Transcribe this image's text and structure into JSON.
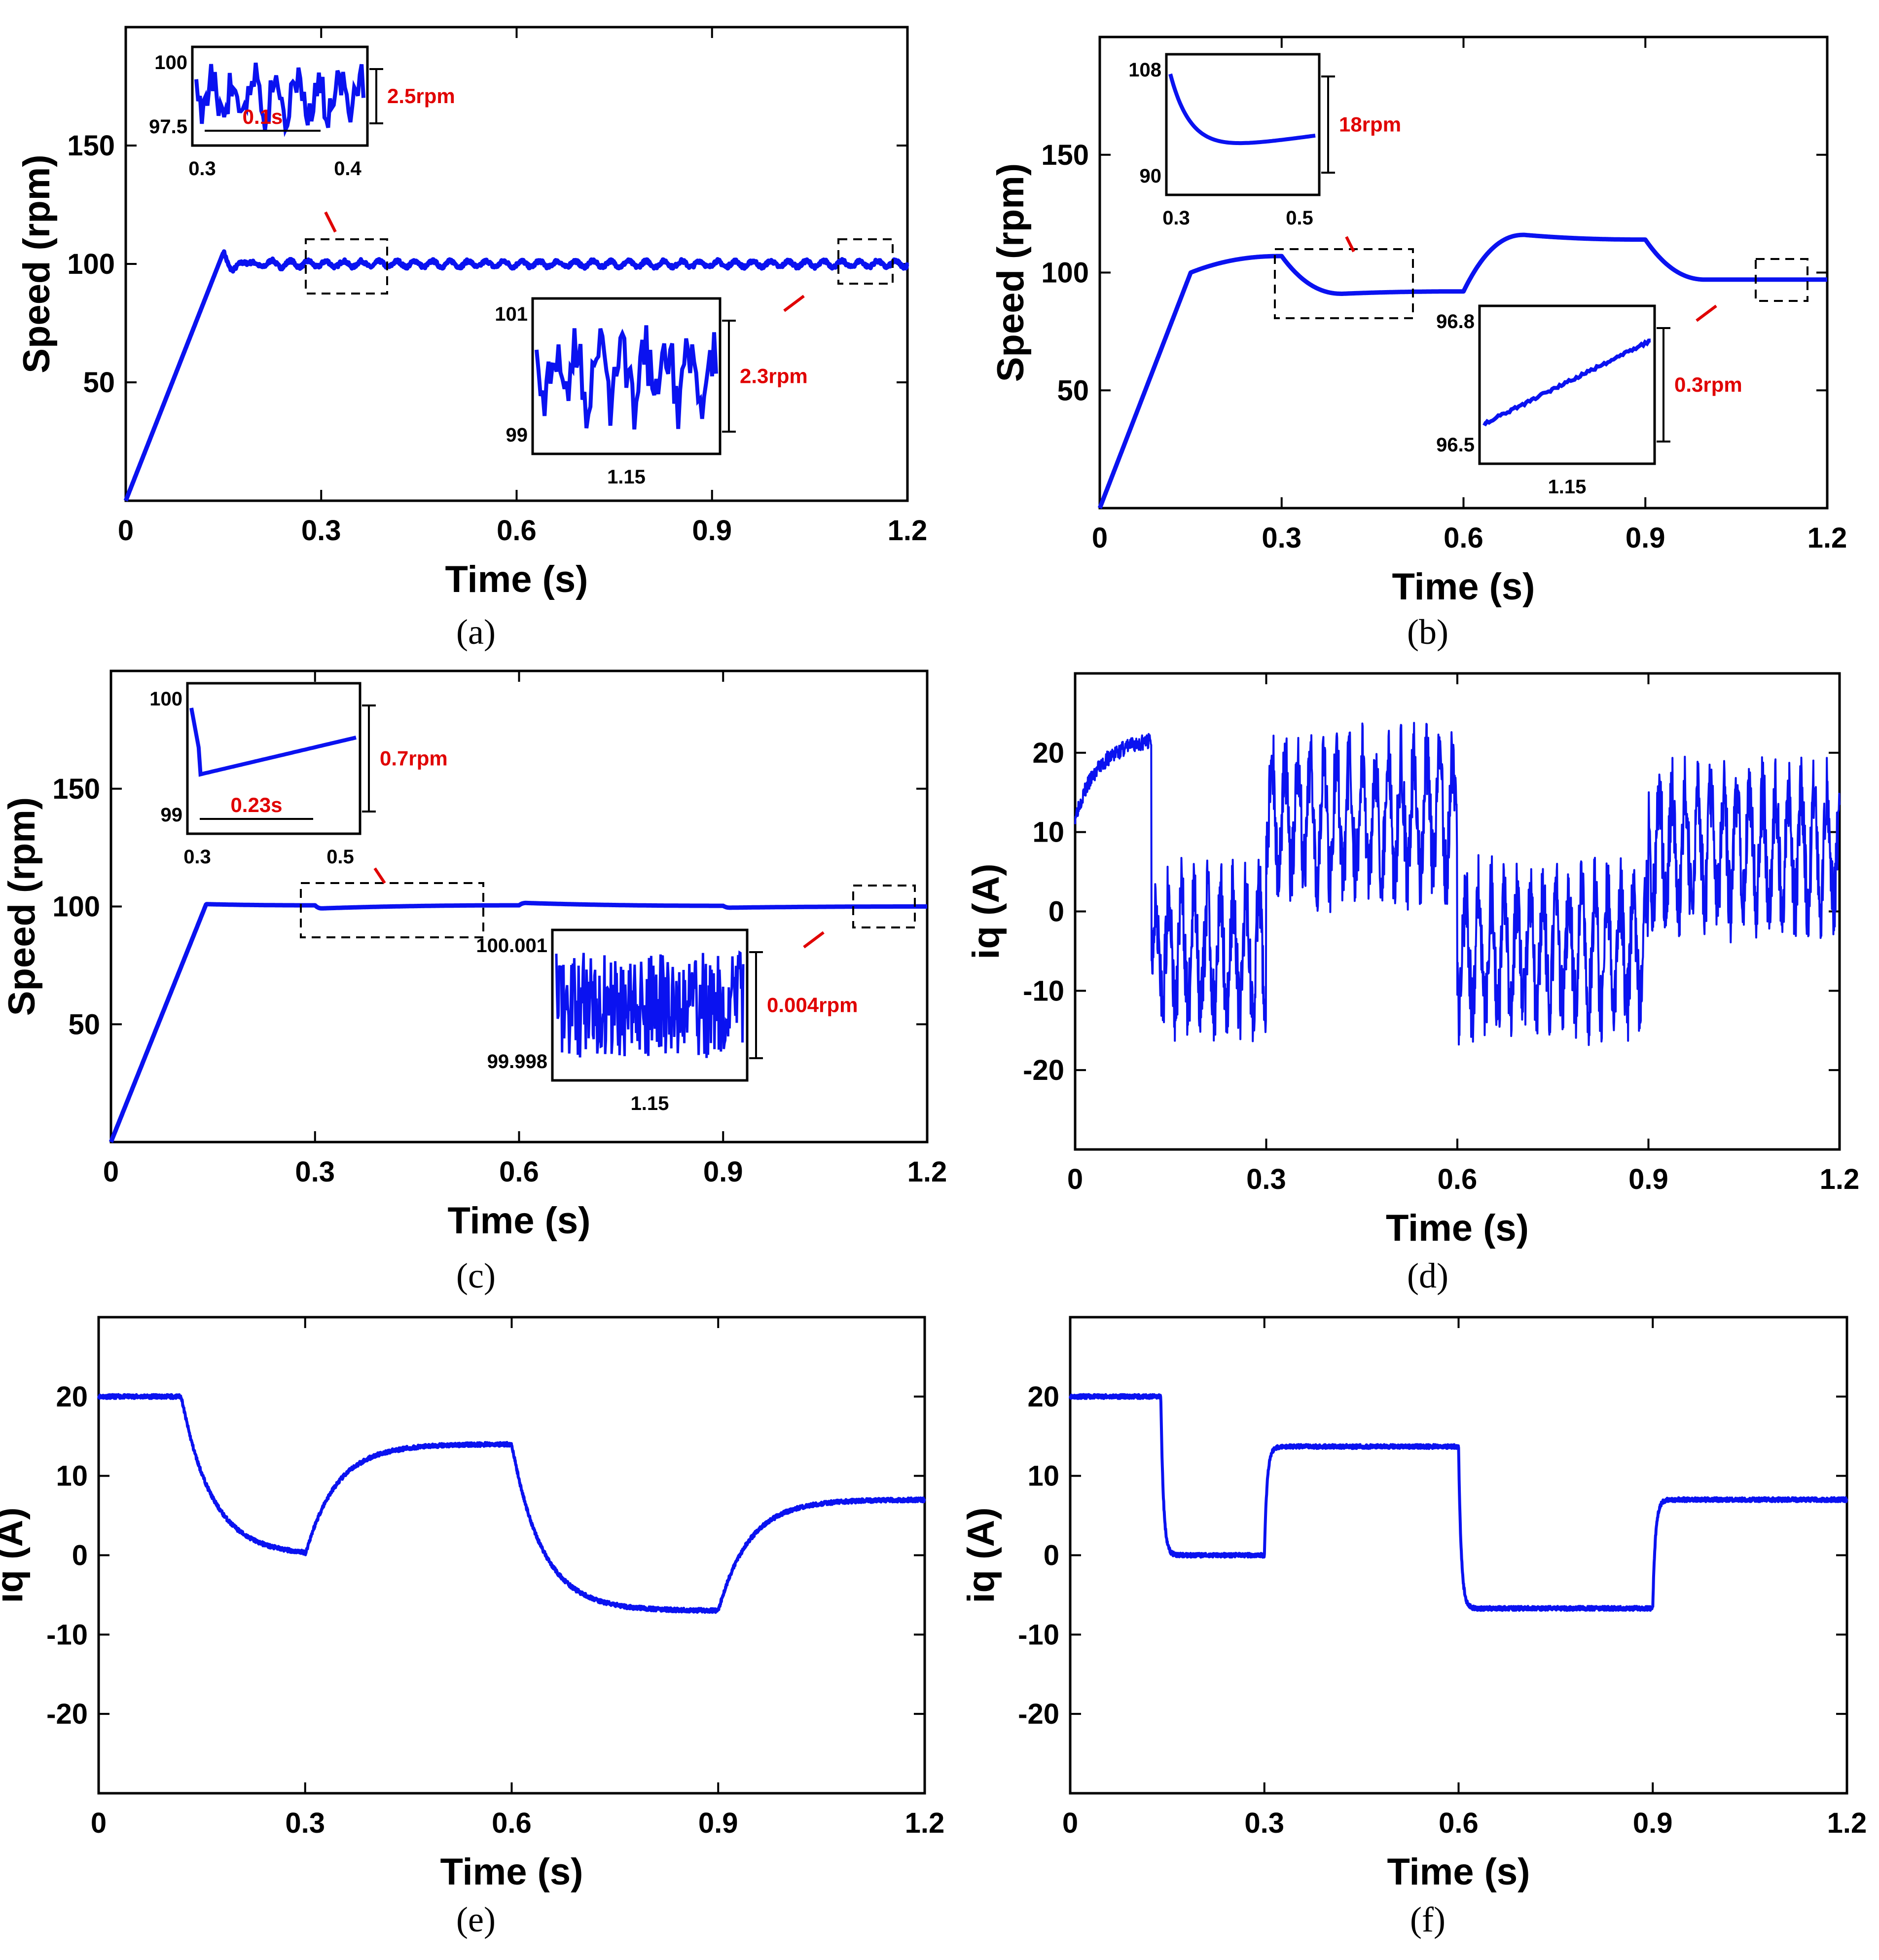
{
  "figure": {
    "colors": {
      "line": "#0a12f0",
      "annotation": "#e00000",
      "axes": "#000000"
    }
  },
  "chart_data": [
    {
      "id": "a",
      "type": "line",
      "caption": "(a)",
      "xlabel": "Time (s)",
      "ylabel": "Speed (rpm)",
      "xlim": [
        0,
        1.2
      ],
      "ylim": [
        0,
        200
      ],
      "xticks": [
        "0",
        "0.3",
        "0.6",
        "0.9",
        "1.2"
      ],
      "yticks": [
        "50",
        "100",
        "150"
      ],
      "series": [
        {
          "name": "speed",
          "model": "ramp",
          "start": 0.15,
          "peak": 105,
          "target": 100,
          "ripple": 2.5
        }
      ],
      "insets": [
        {
          "id": "a-inset1",
          "yticks": [
            "100",
            "97.5"
          ],
          "xticks": [
            "0.3",
            "0.4"
          ],
          "amplitude_label": "2.5rpm",
          "span_label": "0.1s"
        },
        {
          "id": "a-inset2",
          "yticks": [
            "101",
            "99"
          ],
          "xticks": [
            "1.15"
          ],
          "amplitude_label": "2.3rpm"
        }
      ]
    },
    {
      "id": "b",
      "type": "line",
      "caption": "(b)",
      "xlabel": "Time (s)",
      "ylabel": "Speed (rpm)",
      "xlim": [
        0,
        1.2
      ],
      "ylim": [
        0,
        200
      ],
      "xticks": [
        "0",
        "0.3",
        "0.6",
        "0.9",
        "1.2"
      ],
      "yticks": [
        "50",
        "100",
        "150"
      ],
      "series": [
        {
          "name": "speed",
          "model": "steps",
          "points": [
            [
              0,
              0
            ],
            [
              0.15,
              100
            ],
            [
              0.3,
              107
            ],
            [
              0.4,
              91
            ],
            [
              0.6,
              92
            ],
            [
              0.7,
              116
            ],
            [
              0.9,
              114
            ],
            [
              1.0,
              97
            ],
            [
              1.2,
              97
            ]
          ]
        }
      ],
      "insets": [
        {
          "id": "b-inset1",
          "yticks": [
            "108",
            "90"
          ],
          "xticks": [
            "0.3",
            "0.5"
          ],
          "amplitude_label": "18rpm"
        },
        {
          "id": "b-inset2",
          "yticks": [
            "96.8",
            "96.5"
          ],
          "xticks": [
            "1.15"
          ],
          "amplitude_label": "0.3rpm"
        }
      ]
    },
    {
      "id": "c",
      "type": "line",
      "caption": "(c)",
      "xlabel": "Time (s)",
      "ylabel": "Speed (rpm)",
      "xlim": [
        0,
        1.2
      ],
      "ylim": [
        0,
        200
      ],
      "xticks": [
        "0",
        "0.3",
        "0.6",
        "0.9",
        "1.2"
      ],
      "yticks": [
        "50",
        "100",
        "150"
      ],
      "series": [
        {
          "name": "speed",
          "model": "steps",
          "points": [
            [
              0,
              0
            ],
            [
              0.14,
              101
            ],
            [
              0.3,
              100.5
            ],
            [
              0.31,
              99.2
            ],
            [
              0.6,
              100.5
            ],
            [
              0.61,
              101.5
            ],
            [
              0.9,
              100.3
            ],
            [
              0.91,
              99.5
            ],
            [
              1.2,
              100
            ]
          ]
        }
      ],
      "insets": [
        {
          "id": "c-inset1",
          "yticks": [
            "100",
            "99"
          ],
          "xticks": [
            "0.3",
            "0.5"
          ],
          "amplitude_label": "0.7rpm",
          "span_label": "0.23s"
        },
        {
          "id": "c-inset2",
          "yticks": [
            "100.001",
            "99.998"
          ],
          "xticks": [
            "1.15"
          ],
          "amplitude_label": "0.004rpm"
        }
      ]
    },
    {
      "id": "d",
      "type": "line",
      "caption": "(d)",
      "xlabel": "Time (s)",
      "ylabel": "iq (A)",
      "xlim": [
        0,
        1.2
      ],
      "ylim": [
        -30,
        30
      ],
      "xticks": [
        "0",
        "0.3",
        "0.6",
        "0.9",
        "1.2"
      ],
      "yticks": [
        "20",
        "10",
        "0",
        "-10",
        "-20"
      ],
      "series": [
        {
          "name": "iq",
          "model": "noisy",
          "levels": [
            [
              0,
              0.12,
              20
            ],
            [
              0.12,
              0.3,
              -5
            ],
            [
              0.3,
              0.6,
              12
            ],
            [
              0.6,
              0.9,
              -5
            ],
            [
              0.9,
              1.2,
              8
            ]
          ],
          "noise": 9
        }
      ]
    },
    {
      "id": "e",
      "type": "line",
      "caption": "(e)",
      "xlabel": "Time (s)",
      "ylabel": "iq (A)",
      "xlim": [
        0,
        1.2
      ],
      "ylim": [
        -30,
        30
      ],
      "xticks": [
        "0",
        "0.3",
        "0.6",
        "0.9",
        "1.2"
      ],
      "yticks": [
        "20",
        "10",
        "0",
        "-10",
        "-20"
      ],
      "series": [
        {
          "name": "iq",
          "model": "exp",
          "tau": 0.045,
          "levels": [
            [
              0,
              0.12,
              20
            ],
            [
              0.12,
              0.3,
              0
            ],
            [
              0.3,
              0.6,
              14
            ],
            [
              0.6,
              0.9,
              -7
            ],
            [
              0.9,
              1.2,
              7
            ]
          ]
        }
      ]
    },
    {
      "id": "f",
      "type": "line",
      "caption": "(f)",
      "xlabel": "Time (s)",
      "ylabel": "iq (A)",
      "xlim": [
        0,
        1.2
      ],
      "ylim": [
        -30,
        30
      ],
      "xticks": [
        "0",
        "0.3",
        "0.6",
        "0.9",
        "1.2"
      ],
      "yticks": [
        "20",
        "10",
        "0",
        "-10",
        "-20"
      ],
      "series": [
        {
          "name": "iq",
          "model": "exp",
          "tau": 0.004,
          "levels": [
            [
              0,
              0.14,
              20
            ],
            [
              0.14,
              0.3,
              0
            ],
            [
              0.3,
              0.6,
              13.7
            ],
            [
              0.6,
              0.9,
              -6.7
            ],
            [
              0.9,
              1.2,
              7
            ]
          ]
        }
      ]
    }
  ]
}
